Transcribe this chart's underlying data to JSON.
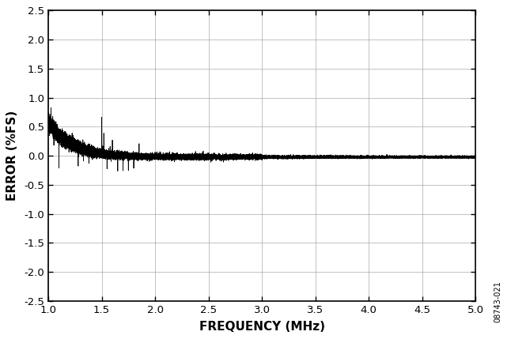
{
  "title": "",
  "xlabel": "FREQUENCY (MHz)",
  "ylabel": "ERROR (%FS)",
  "xlim": [
    1.0,
    5.0
  ],
  "ylim": [
    -2.5,
    2.5
  ],
  "xticks": [
    1.0,
    1.5,
    2.0,
    2.5,
    3.0,
    3.5,
    4.0,
    4.5,
    5.0
  ],
  "yticks": [
    -2.5,
    -2.0,
    -1.5,
    -1.0,
    -0.5,
    0.0,
    0.5,
    1.0,
    1.5,
    2.0,
    2.5
  ],
  "line_color": "#000000",
  "background_color": "#ffffff",
  "grid_color": "#999999",
  "watermark": "08743-021",
  "seed": 42
}
